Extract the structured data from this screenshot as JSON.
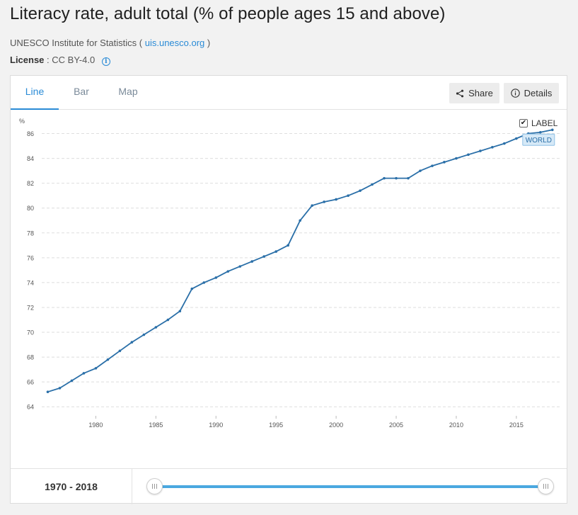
{
  "header": {
    "title": "Literacy rate, adult total (% of people ages 15 and above)",
    "source_name": "UNESCO Institute for Statistics (",
    "source_link": "uis.unesco.org",
    "source_close": ")",
    "license_label": "License",
    "license_value": ": CC BY-4.0"
  },
  "tabs": [
    {
      "label": "Line"
    },
    {
      "label": "Bar"
    },
    {
      "label": "Map"
    }
  ],
  "toolbar": {
    "share_label": "Share",
    "details_label": "Details"
  },
  "label_toggle": {
    "label": "LABEL",
    "check": "✔"
  },
  "chart_data": {
    "type": "line",
    "title": "",
    "ylabel": "%",
    "xlabel": "",
    "ylim": [
      63.5,
      87
    ],
    "xlim": [
      1975.5,
      2018.6
    ],
    "yticks": [
      64,
      66,
      68,
      70,
      72,
      74,
      76,
      78,
      80,
      82,
      84,
      86
    ],
    "xticks": [
      1980,
      1985,
      1990,
      1995,
      2000,
      2005,
      2010,
      2015
    ],
    "grid": true,
    "color": "#2a6fa8",
    "series": [
      {
        "name": "WORLD",
        "x": [
          1976,
          1977,
          1978,
          1979,
          1980,
          1981,
          1982,
          1983,
          1984,
          1985,
          1986,
          1987,
          1988,
          1989,
          1990,
          1991,
          1992,
          1993,
          1994,
          1995,
          1996,
          1997,
          1998,
          1999,
          2000,
          2001,
          2002,
          2003,
          2004,
          2005,
          2006,
          2007,
          2008,
          2009,
          2010,
          2011,
          2012,
          2013,
          2014,
          2015,
          2016,
          2017,
          2018
        ],
        "values": [
          65.2,
          65.5,
          66.1,
          66.7,
          67.1,
          67.8,
          68.5,
          69.2,
          69.8,
          70.4,
          71.0,
          71.7,
          73.5,
          74.0,
          74.4,
          74.9,
          75.3,
          75.7,
          76.1,
          76.5,
          77.0,
          79.0,
          80.2,
          80.5,
          80.7,
          81.0,
          81.4,
          81.9,
          82.4,
          82.4,
          82.4,
          83.0,
          83.4,
          83.7,
          84.0,
          84.3,
          84.6,
          84.9,
          85.2,
          85.6,
          86.0,
          86.1,
          86.3
        ]
      }
    ],
    "series_label": "WORLD"
  },
  "footer": {
    "range_label": "1970 - 2018"
  }
}
